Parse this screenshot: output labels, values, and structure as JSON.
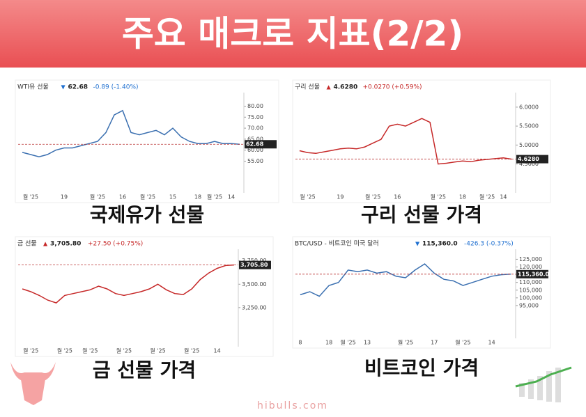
{
  "title": "주요 매크로 지표(2/2)",
  "footer": "hibulls.com",
  "chart_data": [
    {
      "type": "line",
      "name": "WTI유 선물",
      "price": "62.68",
      "change": "-0.89 (-1.40%)",
      "direction": "down",
      "caption": "국제유가 선물",
      "color": "#3a6fb0",
      "x": [
        null,
        "월 '25",
        null,
        null,
        null,
        "19",
        null,
        null,
        null,
        "월 '25",
        null,
        null,
        "16",
        null,
        null,
        "월 '25",
        null,
        null,
        "15",
        null,
        null,
        "18",
        null,
        "월 '25",
        null,
        "14",
        null
      ],
      "values": [
        59,
        58,
        57,
        58,
        60,
        61,
        61,
        62,
        63,
        64,
        68,
        76,
        78,
        68,
        67,
        68,
        69,
        67,
        70,
        66,
        64,
        63,
        63,
        64,
        63,
        63,
        62.68
      ],
      "ylim": [
        52,
        83
      ],
      "yticks": [
        {
          "value": 55,
          "label": "55.00"
        },
        {
          "value": 60,
          "label": "60.00"
        },
        {
          "value": 65,
          "label": "65.00"
        },
        {
          "value": 70,
          "label": "70.00"
        },
        {
          "value": 75,
          "label": "75.00"
        },
        {
          "value": 80,
          "label": "80.00"
        }
      ]
    },
    {
      "type": "line",
      "name": "구리 선물",
      "price": "4.6280",
      "change": "+0.0270 (+0.59%)",
      "direction": "up",
      "caption": "구리 선물 가격",
      "color": "#c62828",
      "x": [
        null,
        "월 '25",
        null,
        null,
        null,
        "19",
        null,
        null,
        null,
        "월 '25",
        null,
        null,
        "16",
        null,
        null,
        null,
        null,
        "월 '25",
        null,
        null,
        "18",
        null,
        null,
        "월 '25",
        null,
        "14",
        null
      ],
      "values": [
        4.85,
        4.8,
        4.78,
        4.82,
        4.86,
        4.9,
        4.92,
        4.9,
        4.95,
        5.05,
        5.15,
        5.5,
        5.55,
        5.5,
        5.6,
        5.7,
        5.6,
        4.5,
        4.52,
        4.55,
        4.58,
        4.56,
        4.6,
        4.62,
        4.64,
        4.66,
        4.628
      ],
      "ylim": [
        4.4,
        6.2
      ],
      "yticks": [
        {
          "value": 4.5,
          "label": "4.5000"
        },
        {
          "value": 5,
          "label": "5.0000"
        },
        {
          "value": 5.5,
          "label": "5.5000"
        },
        {
          "value": 6,
          "label": "6.0000"
        }
      ]
    },
    {
      "type": "line",
      "name": "금 선물",
      "price": "3,705.80",
      "change": "+27.50 (+0.75%)",
      "direction": "up",
      "caption": "금 선물 가격",
      "color": "#c62828",
      "x": [
        null,
        "월 '25",
        null,
        null,
        null,
        "월 '25",
        null,
        null,
        "월 '25",
        null,
        null,
        null,
        "월 '25",
        null,
        null,
        null,
        "월 '25",
        null,
        null,
        null,
        "월 '25",
        null,
        null,
        "14",
        null,
        null
      ],
      "values": [
        3450,
        3420,
        3380,
        3330,
        3300,
        3380,
        3400,
        3420,
        3440,
        3480,
        3450,
        3400,
        3380,
        3400,
        3420,
        3450,
        3500,
        3440,
        3400,
        3390,
        3450,
        3550,
        3620,
        3670,
        3700,
        3705.8
      ],
      "ylim": [
        3100,
        3800
      ],
      "yticks": [
        {
          "value": 3250,
          "label": "3,250.00"
        },
        {
          "value": 3500,
          "label": "3,500.00"
        },
        {
          "value": 3750,
          "label": "3,750.00"
        }
      ]
    },
    {
      "type": "line",
      "name": "BTC/USD - 비트코인 미국 달러",
      "price": "115,360.0",
      "change": "-426.3 (-0.37%)",
      "direction": "down",
      "caption": "비트코인 가격",
      "color": "#3a6fb0",
      "x": [
        "8",
        null,
        null,
        "18",
        null,
        "월 '25",
        null,
        "13",
        null,
        null,
        null,
        "월 '25",
        null,
        null,
        "17",
        null,
        null,
        "월 '25",
        null,
        null,
        "14",
        null,
        null
      ],
      "values": [
        102000,
        104000,
        101000,
        108000,
        110000,
        118000,
        117000,
        118000,
        116000,
        117000,
        114000,
        113000,
        118000,
        122000,
        116000,
        112000,
        111000,
        108000,
        110000,
        112000,
        114000,
        115000,
        115360
      ],
      "ylim": [
        90000,
        127000
      ],
      "yticks": [
        {
          "value": 95000,
          "label": "95,000"
        },
        {
          "value": 100000,
          "label": "100,000"
        },
        {
          "value": 105000,
          "label": "105,000"
        },
        {
          "value": 110000,
          "label": "110,000"
        },
        {
          "value": 115000,
          "label": "115,000"
        },
        {
          "value": 120000,
          "label": "120,000"
        },
        {
          "value": 125000,
          "label": "125,000"
        }
      ]
    }
  ]
}
